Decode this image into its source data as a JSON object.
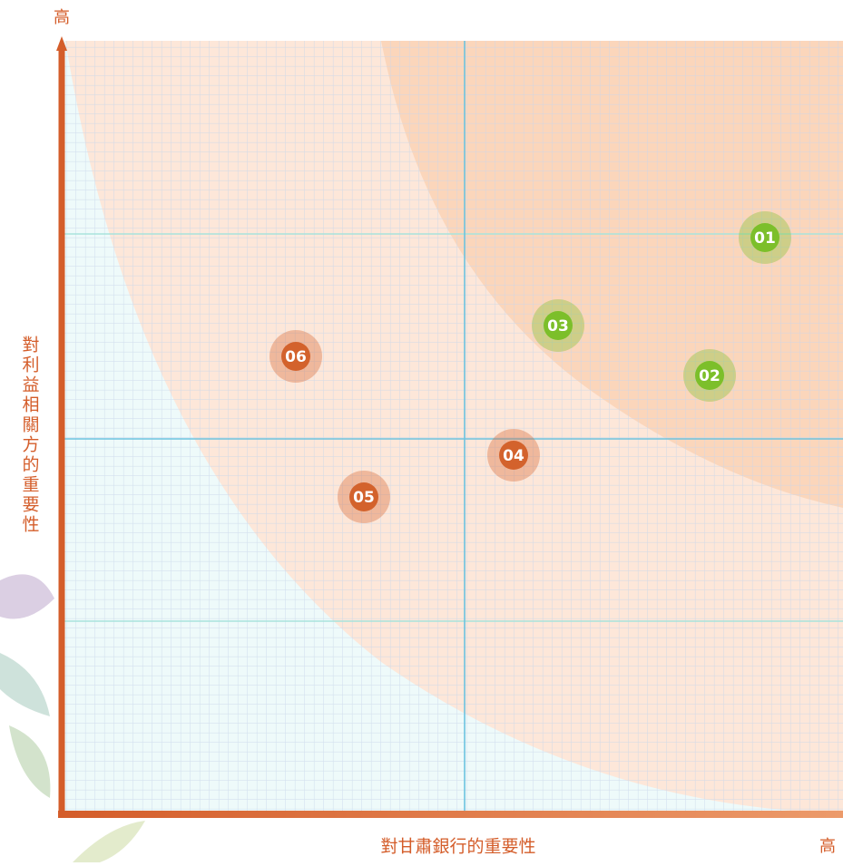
{
  "axes": {
    "y_end_label": "高",
    "x_end_label": "高",
    "x_label": "對甘肅銀行的重要性",
    "y_label": "對利益相關方的重要性"
  },
  "nodes": [
    {
      "label": "01",
      "color": "#7cbf2a"
    },
    {
      "label": "02",
      "color": "#7cbf2a"
    },
    {
      "label": "03",
      "color": "#7cbf2a"
    },
    {
      "label": "04",
      "color": "#d3622c"
    },
    {
      "label": "05",
      "color": "#d3622c"
    },
    {
      "label": "06",
      "color": "#d3622c"
    }
  ]
}
